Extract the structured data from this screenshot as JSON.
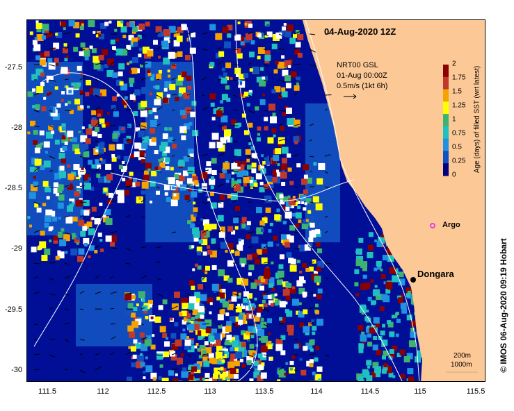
{
  "title": "04-Aug-2020 12Z",
  "current_legend": {
    "line1": "NRT00 GSL",
    "line2": "01-Aug 00:00Z",
    "line3": "0.5m/s (1kt 6h)"
  },
  "colorbar": {
    "title": "Age (days) of filled SST (wrt latest)",
    "ticks": [
      "2",
      "1.75",
      "1.5",
      "1.25",
      "1",
      "0.75",
      "0.5",
      "0.25",
      "0"
    ],
    "colors": [
      "#8b0000",
      "#c0392b",
      "#f4a300",
      "#ffff00",
      "#3cb371",
      "#20c0c0",
      "#2090e0",
      "#1050c0",
      "#000080"
    ]
  },
  "axes": {
    "y_ticks": [
      "-27.5",
      "-28",
      "-28.5",
      "-29",
      "-29.5",
      "-30"
    ],
    "x_ticks": [
      "111.5",
      "112",
      "112.5",
      "113",
      "113.5",
      "114",
      "114.5",
      "115",
      "115.5"
    ],
    "lon_range": [
      111.3,
      115.6
    ],
    "lat_range": [
      -27.2,
      -30.1
    ]
  },
  "places": {
    "dongara": "Dongara",
    "argo": "Argo"
  },
  "isobaths": {
    "a": "200m",
    "b": "1000m"
  },
  "credit": "© IMOS 06-Aug-2020 09:19 Hobart",
  "colors": {
    "land": "#fcc896",
    "ocean": "#000f96",
    "argo": "#e040e0"
  }
}
